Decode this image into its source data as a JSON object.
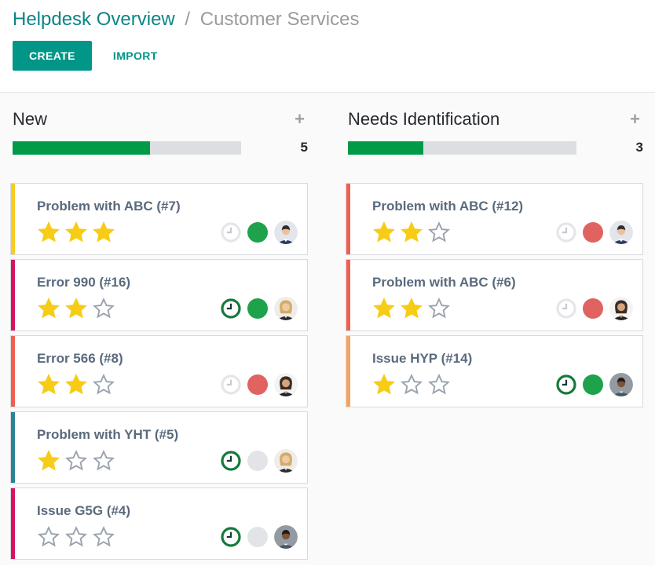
{
  "breadcrumb": {
    "parent": "Helpdesk Overview",
    "separator": "/",
    "current": "Customer Services"
  },
  "toolbar": {
    "create_label": "CREATE",
    "import_label": "IMPORT"
  },
  "icons": {
    "add_column_glyph": "+"
  },
  "max_stars": 3,
  "colors": {
    "accent_teal": "#019688",
    "breadcrumb_teal": "#0c8485",
    "progress_green": "#009a48",
    "star": {
      "filled": "#f7cc16",
      "empty_stroke": "#99a2ad"
    },
    "dots": {
      "green": "#1ea24c",
      "red": "#e06360",
      "gray": "#e2e4e7"
    },
    "clock": {
      "green": {
        "ring": "#157a3c",
        "hand": "#12392c"
      },
      "gray": {
        "ring": "#e4e6e9",
        "hand": "#c6cad0"
      }
    }
  },
  "columns": [
    {
      "title": "New",
      "count": "5",
      "progress_percent": 60,
      "cards": [
        {
          "title": "Problem with ABC (#7)",
          "stars": 3,
          "color_bar": "#f7cd1f",
          "activity_clock": "gray",
          "status_dot": "green",
          "avatar": "man-navy-suit"
        },
        {
          "title": "Error 990 (#16)",
          "stars": 2,
          "color_bar": "#d6145f",
          "activity_clock": "green",
          "status_dot": "green",
          "avatar": "blonde-woman"
        },
        {
          "title": "Error 566 (#8)",
          "stars": 2,
          "color_bar": "#f06050",
          "activity_clock": "gray",
          "status_dot": "red",
          "avatar": "brunette-woman"
        },
        {
          "title": "Problem with YHT (#5)",
          "stars": 1,
          "color_bar": "#2c8397",
          "activity_clock": "green",
          "status_dot": "gray",
          "avatar": "blonde-woman"
        },
        {
          "title": "Issue G5G (#4)",
          "stars": 0,
          "color_bar": "#d6145f",
          "activity_clock": "green",
          "status_dot": "gray",
          "avatar": "dark-man-gray-suit"
        }
      ]
    },
    {
      "title": "Needs Identification",
      "count": "3",
      "progress_percent": 33,
      "cards": [
        {
          "title": "Problem with ABC (#12)",
          "stars": 2,
          "color_bar": "#f06050",
          "activity_clock": "gray",
          "status_dot": "red",
          "avatar": "man-navy-suit"
        },
        {
          "title": "Problem with ABC (#6)",
          "stars": 2,
          "color_bar": "#f06050",
          "activity_clock": "gray",
          "status_dot": "red",
          "avatar": "brunette-woman"
        },
        {
          "title": "Issue HYP (#14)",
          "stars": 1,
          "color_bar": "#f4a460",
          "activity_clock": "green",
          "status_dot": "green",
          "avatar": "dark-man-gray-suit"
        }
      ]
    }
  ]
}
